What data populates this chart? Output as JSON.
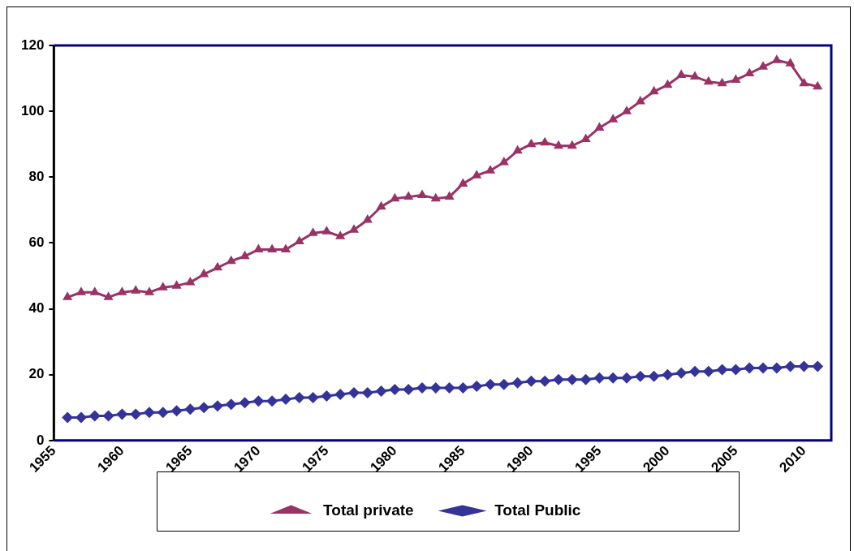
{
  "chart_data": {
    "type": "line",
    "x": [
      1956,
      1957,
      1958,
      1959,
      1960,
      1961,
      1962,
      1963,
      1964,
      1965,
      1966,
      1967,
      1968,
      1969,
      1970,
      1971,
      1972,
      1973,
      1974,
      1975,
      1976,
      1977,
      1978,
      1979,
      1980,
      1981,
      1982,
      1983,
      1984,
      1985,
      1986,
      1987,
      1988,
      1989,
      1990,
      1991,
      1992,
      1993,
      1994,
      1995,
      1996,
      1997,
      1998,
      1999,
      2000,
      2001,
      2002,
      2003,
      2004,
      2005,
      2006,
      2007,
      2008,
      2009,
      2010,
      2011
    ],
    "series": [
      {
        "name": "Total private",
        "color": "#993366",
        "marker": "triangle",
        "values": [
          43.5,
          45,
          45,
          43.5,
          45,
          45.5,
          45,
          46.5,
          47,
          48,
          50.5,
          52.5,
          54.5,
          56,
          58,
          58,
          58,
          60.5,
          63,
          63.5,
          62,
          64,
          67,
          71,
          73.5,
          74,
          74.5,
          73.5,
          74,
          78,
          80.5,
          82,
          84.5,
          88,
          90,
          90.5,
          89.5,
          89.5,
          91.5,
          95,
          97.5,
          100,
          103,
          106,
          108,
          111,
          110.5,
          109,
          108.5,
          109.5,
          111.5,
          113.5,
          115.5,
          114.5,
          108.5,
          107.5
        ]
      },
      {
        "name": "Total Public",
        "color": "#333399",
        "marker": "diamond",
        "values": [
          7,
          7,
          7.5,
          7.5,
          8,
          8,
          8.5,
          8.5,
          9,
          9.5,
          10,
          10.5,
          11,
          11.5,
          12,
          12,
          12.5,
          13,
          13,
          13.5,
          14,
          14.5,
          14.5,
          15,
          15.5,
          15.5,
          16,
          16,
          16,
          16,
          16.5,
          17,
          17,
          17.5,
          18,
          18,
          18.5,
          18.5,
          18.5,
          19,
          19,
          19,
          19.5,
          19.5,
          20,
          20.5,
          21,
          21,
          21.5,
          21.5,
          22,
          22,
          22,
          22.5,
          22.5,
          22.5
        ]
      }
    ],
    "xlim": [
      1955,
      2012
    ],
    "xticks": [
      1955,
      1960,
      1965,
      1970,
      1975,
      1980,
      1985,
      1990,
      1995,
      2000,
      2005,
      2010
    ],
    "ylim": [
      0,
      120
    ],
    "yticks": [
      0,
      20,
      40,
      60,
      80,
      100,
      120
    ],
    "grid": false,
    "legend": "bottom",
    "line_style": "solid"
  }
}
